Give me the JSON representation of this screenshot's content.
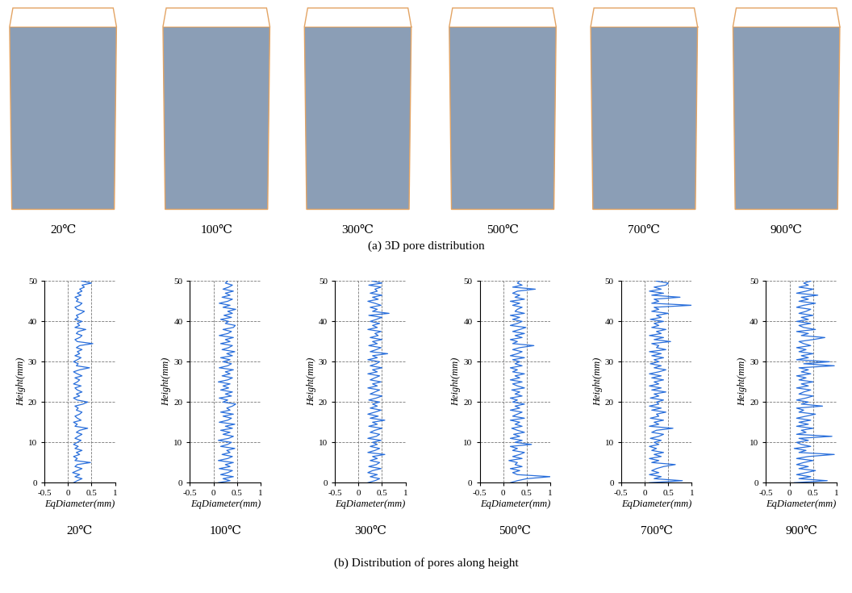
{
  "panel_a": {
    "caption": "(a) 3D pore distribution",
    "labels": [
      "20℃",
      "100℃",
      "300℃",
      "500℃",
      "700℃",
      "900℃"
    ]
  },
  "panel_b": {
    "caption": "(b) Distribution of pores along height"
  },
  "chart_data": [
    {
      "type": "line",
      "title": "20℃",
      "x_label": "EqDiameter(mm)",
      "y_label": "Height(mm)",
      "color": "#2a6fdb",
      "xlim": [
        -0.5,
        1
      ],
      "xticks": [
        -0.5,
        0,
        0.5,
        1
      ],
      "ylim": [
        0,
        50
      ],
      "yticks": [
        0,
        10,
        20,
        30,
        40,
        50
      ],
      "grid": true,
      "x": [
        0.12,
        0.2,
        0.3,
        0.15,
        0.25,
        0.1,
        0.2,
        0.3,
        0.15,
        0.2,
        0.48,
        0.15,
        0.2,
        0.12,
        0.25,
        0.18,
        0.3,
        0.15,
        0.22,
        0.12,
        0.2,
        0.28,
        0.15,
        0.22,
        0.3,
        0.18,
        0.25,
        0.42,
        0.15,
        0.2,
        0.12,
        0.28,
        0.2,
        0.15,
        0.25,
        0.3,
        0.18,
        0.22,
        0.15,
        0.32,
        0.42,
        0.2,
        0.12,
        0.25,
        0.18,
        0.3,
        0.2,
        0.15,
        0.28,
        0.12,
        0.2,
        0.25,
        0.15,
        0.3,
        0.2,
        0.12,
        0.25,
        0.46,
        0.18,
        0.22,
        0.12,
        0.2,
        0.28,
        0.15,
        0.25,
        0.2,
        0.3,
        0.18,
        0.25,
        0.53,
        0.2,
        0.15,
        0.25,
        0.3,
        0.18,
        0.22,
        0.38,
        0.15,
        0.25,
        0.2,
        0.3,
        0.15,
        0.22,
        0.18,
        0.28,
        0.35,
        0.2,
        0.15,
        0.25,
        0.3,
        0.18,
        0.22,
        0.15,
        0.28,
        0.2,
        0.3,
        0.25,
        0.35,
        0.3,
        0.5,
        0.3
      ],
      "y": [
        0,
        0.5,
        1,
        1.5,
        2,
        2.5,
        3,
        3.5,
        4,
        4.5,
        5,
        5.5,
        6,
        6.5,
        7,
        7.5,
        8,
        8.5,
        9,
        9.5,
        10,
        10.5,
        11,
        11.5,
        12,
        12.5,
        13,
        13.5,
        14,
        14.5,
        15,
        15.5,
        16,
        16.5,
        17,
        17.5,
        18,
        18.5,
        19,
        19.5,
        20,
        20.5,
        21,
        21.5,
        22,
        22.5,
        23,
        23.5,
        24,
        24.5,
        25,
        25.5,
        26,
        26.5,
        27,
        27.5,
        28,
        28.5,
        29,
        29.5,
        30,
        30.5,
        31,
        31.5,
        32,
        32.5,
        33,
        33.5,
        34,
        34.5,
        35,
        35.5,
        36,
        36.5,
        37,
        37.5,
        38,
        38.5,
        39,
        39.5,
        40,
        40.5,
        41,
        41.5,
        42,
        42.5,
        43,
        43.5,
        44,
        44.5,
        45,
        45.5,
        46,
        46.5,
        47,
        47.5,
        48,
        48.5,
        49,
        49.5,
        50
      ]
    },
    {
      "type": "line",
      "title": "100℃",
      "x_label": "EqDiameter(mm)",
      "y_label": "Height(mm)",
      "color": "#2a6fdb",
      "xlim": [
        -0.5,
        1
      ],
      "xticks": [
        -0.5,
        0,
        0.5,
        1
      ],
      "ylim": [
        0,
        50
      ],
      "yticks": [
        0,
        10,
        20,
        30,
        40,
        50
      ],
      "grid": true,
      "x": [
        0.1,
        0.35,
        0.2,
        0.42,
        0.15,
        0.3,
        0.4,
        0.12,
        0.35,
        0.25,
        0.42,
        0.1,
        0.3,
        0.4,
        0.18,
        0.35,
        0.28,
        0.45,
        0.15,
        0.3,
        0.38,
        0.1,
        0.32,
        0.42,
        0.2,
        0.35,
        0.15,
        0.4,
        0.25,
        0.45,
        0.12,
        0.3,
        0.38,
        0.2,
        0.42,
        0.15,
        0.35,
        0.28,
        0.4,
        0.47,
        0.2,
        0.3,
        0.12,
        0.38,
        0.25,
        0.4,
        0.15,
        0.32,
        0.2,
        0.35,
        0.1,
        0.3,
        0.4,
        0.18,
        0.35,
        0.25,
        0.42,
        0.12,
        0.3,
        0.38,
        0.2,
        0.35,
        0.15,
        0.4,
        0.28,
        0.45,
        0.18,
        0.32,
        0.4,
        0.15,
        0.35,
        0.25,
        0.42,
        0.12,
        0.3,
        0.38,
        0.2,
        0.42,
        0.46,
        0.25,
        0.32,
        0.15,
        0.38,
        0.22,
        0.4,
        0.3,
        0.47,
        0.2,
        0.35,
        0.12,
        0.3,
        0.4,
        0.18,
        0.35,
        0.25,
        0.42,
        0.2,
        0.32,
        0.4,
        0.25,
        0.3
      ],
      "y": [
        0,
        0.5,
        1,
        1.5,
        2,
        2.5,
        3,
        3.5,
        4,
        4.5,
        5,
        5.5,
        6,
        6.5,
        7,
        7.5,
        8,
        8.5,
        9,
        9.5,
        10,
        10.5,
        11,
        11.5,
        12,
        12.5,
        13,
        13.5,
        14,
        14.5,
        15,
        15.5,
        16,
        16.5,
        17,
        17.5,
        18,
        18.5,
        19,
        19.5,
        20,
        20.5,
        21,
        21.5,
        22,
        22.5,
        23,
        23.5,
        24,
        24.5,
        25,
        25.5,
        26,
        26.5,
        27,
        27.5,
        28,
        28.5,
        29,
        29.5,
        30,
        30.5,
        31,
        31.5,
        32,
        32.5,
        33,
        33.5,
        34,
        34.5,
        35,
        35.5,
        36,
        36.5,
        37,
        37.5,
        38,
        38.5,
        39,
        39.5,
        40,
        40.5,
        41,
        41.5,
        42,
        42.5,
        43,
        43.5,
        44,
        44.5,
        45,
        45.5,
        46,
        46.5,
        47,
        47.5,
        48,
        48.5,
        49,
        49.5,
        50
      ]
    },
    {
      "type": "line",
      "title": "300℃",
      "x_label": "EqDiameter(mm)",
      "y_label": "Height(mm)",
      "color": "#2a6fdb",
      "xlim": [
        -0.5,
        1
      ],
      "xticks": [
        -0.5,
        0,
        0.5,
        1
      ],
      "ylim": [
        0,
        50
      ],
      "yticks": [
        0,
        10,
        20,
        30,
        40,
        50
      ],
      "grid": true,
      "x": [
        0.2,
        0.35,
        0.45,
        0.25,
        0.4,
        0.2,
        0.3,
        0.48,
        0.22,
        0.38,
        0.45,
        0.25,
        0.4,
        0.3,
        0.56,
        0.2,
        0.35,
        0.45,
        0.25,
        0.4,
        0.3,
        0.48,
        0.2,
        0.38,
        0.45,
        0.25,
        0.35,
        0.5,
        0.22,
        0.4,
        0.3,
        0.56,
        0.25,
        0.42,
        0.2,
        0.35,
        0.48,
        0.25,
        0.4,
        0.3,
        0.45,
        0.22,
        0.38,
        0.5,
        0.25,
        0.35,
        0.45,
        0.2,
        0.4,
        0.3,
        0.48,
        0.25,
        0.35,
        0.45,
        0.2,
        0.4,
        0.3,
        0.5,
        0.25,
        0.38,
        0.45,
        0.2,
        0.4,
        0.3,
        0.62,
        0.25,
        0.38,
        0.48,
        0.22,
        0.4,
        0.3,
        0.5,
        0.25,
        0.42,
        0.35,
        0.48,
        0.2,
        0.4,
        0.3,
        0.45,
        0.25,
        0.38,
        0.5,
        0.22,
        0.65,
        0.3,
        0.4,
        0.25,
        0.48,
        0.35,
        0.2,
        0.42,
        0.3,
        0.5,
        0.25,
        0.4,
        0.35,
        0.48,
        0.22,
        0.5,
        0.3
      ],
      "y": [
        0,
        0.5,
        1,
        1.5,
        2,
        2.5,
        3,
        3.5,
        4,
        4.5,
        5,
        5.5,
        6,
        6.5,
        7,
        7.5,
        8,
        8.5,
        9,
        9.5,
        10,
        10.5,
        11,
        11.5,
        12,
        12.5,
        13,
        13.5,
        14,
        14.5,
        15,
        15.5,
        16,
        16.5,
        17,
        17.5,
        18,
        18.5,
        19,
        19.5,
        20,
        20.5,
        21,
        21.5,
        22,
        22.5,
        23,
        23.5,
        24,
        24.5,
        25,
        25.5,
        26,
        26.5,
        27,
        27.5,
        28,
        28.5,
        29,
        29.5,
        30,
        30.5,
        31,
        31.5,
        32,
        32.5,
        33,
        33.5,
        34,
        34.5,
        35,
        35.5,
        36,
        36.5,
        37,
        37.5,
        38,
        38.5,
        39,
        39.5,
        40,
        40.5,
        41,
        41.5,
        42,
        42.5,
        43,
        43.5,
        44,
        44.5,
        45,
        45.5,
        46,
        46.5,
        47,
        47.5,
        48,
        48.5,
        49,
        49.5,
        50
      ]
    },
    {
      "type": "line",
      "title": "500℃",
      "x_label": "EqDiameter(mm)",
      "y_label": "Height(mm)",
      "color": "#2a6fdb",
      "xlim": [
        -0.5,
        1
      ],
      "xticks": [
        -0.5,
        0,
        0.5,
        1
      ],
      "ylim": [
        0,
        50
      ],
      "yticks": [
        0,
        10,
        20,
        30,
        40,
        50
      ],
      "grid": true,
      "x": [
        0.15,
        0.3,
        0.5,
        1.0,
        0.3,
        0.2,
        0.35,
        0.15,
        0.4,
        0.25,
        0.3,
        0.12,
        0.4,
        0.2,
        0.35,
        0.45,
        0.2,
        0.3,
        0.15,
        0.6,
        0.25,
        0.4,
        0.15,
        0.35,
        0.22,
        0.45,
        0.3,
        0.18,
        0.4,
        0.25,
        0.35,
        0.15,
        0.45,
        0.2,
        0.3,
        0.4,
        0.15,
        0.35,
        0.25,
        0.45,
        0.2,
        0.3,
        0.15,
        0.4,
        0.25,
        0.35,
        0.18,
        0.45,
        0.3,
        0.2,
        0.4,
        0.15,
        0.35,
        0.25,
        0.45,
        0.2,
        0.3,
        0.15,
        0.4,
        0.25,
        0.35,
        0.2,
        0.45,
        0.15,
        0.3,
        0.4,
        0.2,
        0.35,
        0.65,
        0.2,
        0.3,
        0.15,
        0.4,
        0.25,
        0.45,
        0.2,
        0.35,
        0.48,
        0.15,
        0.3,
        0.4,
        0.2,
        0.35,
        0.15,
        0.45,
        0.25,
        0.3,
        0.4,
        0.2,
        0.35,
        0.15,
        0.45,
        0.25,
        0.35,
        0.2,
        0.3,
        0.68,
        0.2,
        0.4,
        0.3,
        0.35
      ],
      "y": [
        0,
        0.5,
        1,
        1.5,
        2,
        2.5,
        3,
        3.5,
        4,
        4.5,
        5,
        5.5,
        6,
        6.5,
        7,
        7.5,
        8,
        8.5,
        9,
        9.5,
        10,
        10.5,
        11,
        11.5,
        12,
        12.5,
        13,
        13.5,
        14,
        14.5,
        15,
        15.5,
        16,
        16.5,
        17,
        17.5,
        18,
        18.5,
        19,
        19.5,
        20,
        20.5,
        21,
        21.5,
        22,
        22.5,
        23,
        23.5,
        24,
        24.5,
        25,
        25.5,
        26,
        26.5,
        27,
        27.5,
        28,
        28.5,
        29,
        29.5,
        30,
        30.5,
        31,
        31.5,
        32,
        32.5,
        33,
        33.5,
        34,
        34.5,
        35,
        35.5,
        36,
        36.5,
        37,
        37.5,
        38,
        38.5,
        39,
        39.5,
        40,
        40.5,
        41,
        41.5,
        42,
        42.5,
        43,
        43.5,
        44,
        44.5,
        45,
        45.5,
        46,
        46.5,
        47,
        47.5,
        48,
        48.5,
        49,
        49.5,
        50
      ]
    },
    {
      "type": "line",
      "title": "700℃",
      "x_label": "EqDiameter(mm)",
      "y_label": "Height(mm)",
      "color": "#2a6fdb",
      "xlim": [
        -0.5,
        1
      ],
      "xticks": [
        -0.5,
        0,
        0.5,
        1
      ],
      "ylim": [
        0,
        50
      ],
      "yticks": [
        0,
        10,
        20,
        30,
        40,
        50
      ],
      "grid": true,
      "x": [
        0.1,
        0.8,
        0.2,
        0.35,
        0.1,
        0.3,
        0.15,
        0.25,
        0.4,
        0.65,
        0.15,
        0.3,
        0.1,
        0.35,
        0.2,
        0.4,
        0.15,
        0.25,
        0.1,
        0.3,
        0.2,
        0.35,
        0.12,
        0.3,
        0.4,
        0.15,
        0.25,
        0.6,
        0.1,
        0.3,
        0.2,
        0.4,
        0.12,
        0.3,
        0.25,
        0.45,
        0.15,
        0.35,
        0.1,
        0.3,
        0.25,
        0.4,
        0.12,
        0.3,
        0.2,
        0.45,
        0.15,
        0.35,
        0.1,
        0.3,
        0.2,
        0.4,
        0.15,
        0.35,
        0.1,
        0.3,
        0.45,
        0.2,
        0.35,
        0.12,
        0.3,
        0.2,
        0.4,
        0.15,
        0.35,
        0.1,
        0.45,
        0.25,
        0.3,
        0.15,
        0.55,
        0.2,
        0.4,
        0.1,
        0.35,
        0.25,
        0.45,
        0.15,
        0.3,
        0.2,
        0.4,
        0.12,
        0.35,
        0.25,
        0.5,
        0.15,
        0.3,
        0.2,
        1.0,
        0.15,
        0.3,
        0.2,
        0.75,
        0.15,
        0.4,
        0.1,
        0.35,
        0.2,
        0.45,
        0.5,
        0.25
      ],
      "y": [
        0,
        0.5,
        1,
        1.5,
        2,
        2.5,
        3,
        3.5,
        4,
        4.5,
        5,
        5.5,
        6,
        6.5,
        7,
        7.5,
        8,
        8.5,
        9,
        9.5,
        10,
        10.5,
        11,
        11.5,
        12,
        12.5,
        13,
        13.5,
        14,
        14.5,
        15,
        15.5,
        16,
        16.5,
        17,
        17.5,
        18,
        18.5,
        19,
        19.5,
        20,
        20.5,
        21,
        21.5,
        22,
        22.5,
        23,
        23.5,
        24,
        24.5,
        25,
        25.5,
        26,
        26.5,
        27,
        27.5,
        28,
        28.5,
        29,
        29.5,
        30,
        30.5,
        31,
        31.5,
        32,
        32.5,
        33,
        33.5,
        34,
        34.5,
        35,
        35.5,
        36,
        36.5,
        37,
        37.5,
        38,
        38.5,
        39,
        39.5,
        40,
        40.5,
        41,
        41.5,
        42,
        42.5,
        43,
        43.5,
        44,
        44.5,
        45,
        45.5,
        46,
        46.5,
        47,
        47.5,
        48,
        48.5,
        49,
        49.5,
        50
      ]
    },
    {
      "type": "line",
      "title": "900℃",
      "x_label": "EqDiameter(mm)",
      "y_label": "Height(mm)",
      "color": "#2a6fdb",
      "xlim": [
        -0.5,
        1
      ],
      "xticks": [
        -0.5,
        0,
        0.5,
        1
      ],
      "ylim": [
        0,
        50
      ],
      "yticks": [
        0,
        10,
        20,
        30,
        40,
        50
      ],
      "grid": true,
      "x": [
        0.1,
        0.8,
        0.2,
        0.45,
        0.15,
        0.35,
        0.55,
        0.2,
        0.4,
        0.15,
        0.3,
        0.5,
        0.15,
        0.4,
        0.95,
        0.2,
        0.35,
        0.1,
        0.45,
        0.25,
        0.15,
        0.4,
        0.2,
        0.9,
        0.15,
        0.35,
        0.25,
        0.5,
        0.15,
        0.4,
        0.2,
        0.45,
        0.15,
        0.35,
        0.55,
        0.2,
        0.3,
        0.15,
        0.7,
        0.25,
        0.4,
        0.15,
        0.35,
        0.5,
        0.2,
        0.3,
        0.45,
        0.15,
        0.4,
        0.25,
        0.5,
        0.2,
        0.35,
        0.15,
        0.45,
        0.25,
        0.4,
        0.2,
        0.95,
        0.3,
        0.85,
        0.15,
        0.4,
        0.25,
        0.5,
        0.2,
        0.35,
        0.15,
        0.45,
        0.3,
        0.2,
        0.5,
        0.75,
        0.25,
        0.4,
        0.15,
        0.55,
        0.3,
        0.2,
        0.45,
        0.15,
        0.4,
        0.25,
        0.5,
        0.2,
        0.35,
        0.45,
        0.15,
        0.3,
        0.55,
        0.2,
        0.4,
        0.25,
        0.6,
        0.15,
        0.35,
        0.5,
        0.2,
        0.4,
        0.3,
        0.45
      ],
      "y": [
        0,
        0.5,
        1,
        1.5,
        2,
        2.5,
        3,
        3.5,
        4,
        4.5,
        5,
        5.5,
        6,
        6.5,
        7,
        7.5,
        8,
        8.5,
        9,
        9.5,
        10,
        10.5,
        11,
        11.5,
        12,
        12.5,
        13,
        13.5,
        14,
        14.5,
        15,
        15.5,
        16,
        16.5,
        17,
        17.5,
        18,
        18.5,
        19,
        19.5,
        20,
        20.5,
        21,
        21.5,
        22,
        22.5,
        23,
        23.5,
        24,
        24.5,
        25,
        25.5,
        26,
        26.5,
        27,
        27.5,
        28,
        28.5,
        29,
        29.5,
        30,
        30.5,
        31,
        31.5,
        32,
        32.5,
        33,
        33.5,
        34,
        34.5,
        35,
        35.5,
        36,
        36.5,
        37,
        37.5,
        38,
        38.5,
        39,
        39.5,
        40,
        40.5,
        41,
        41.5,
        42,
        42.5,
        43,
        43.5,
        44,
        44.5,
        45,
        45.5,
        46,
        46.5,
        47,
        47.5,
        48,
        48.5,
        49,
        49.5,
        50
      ]
    }
  ]
}
